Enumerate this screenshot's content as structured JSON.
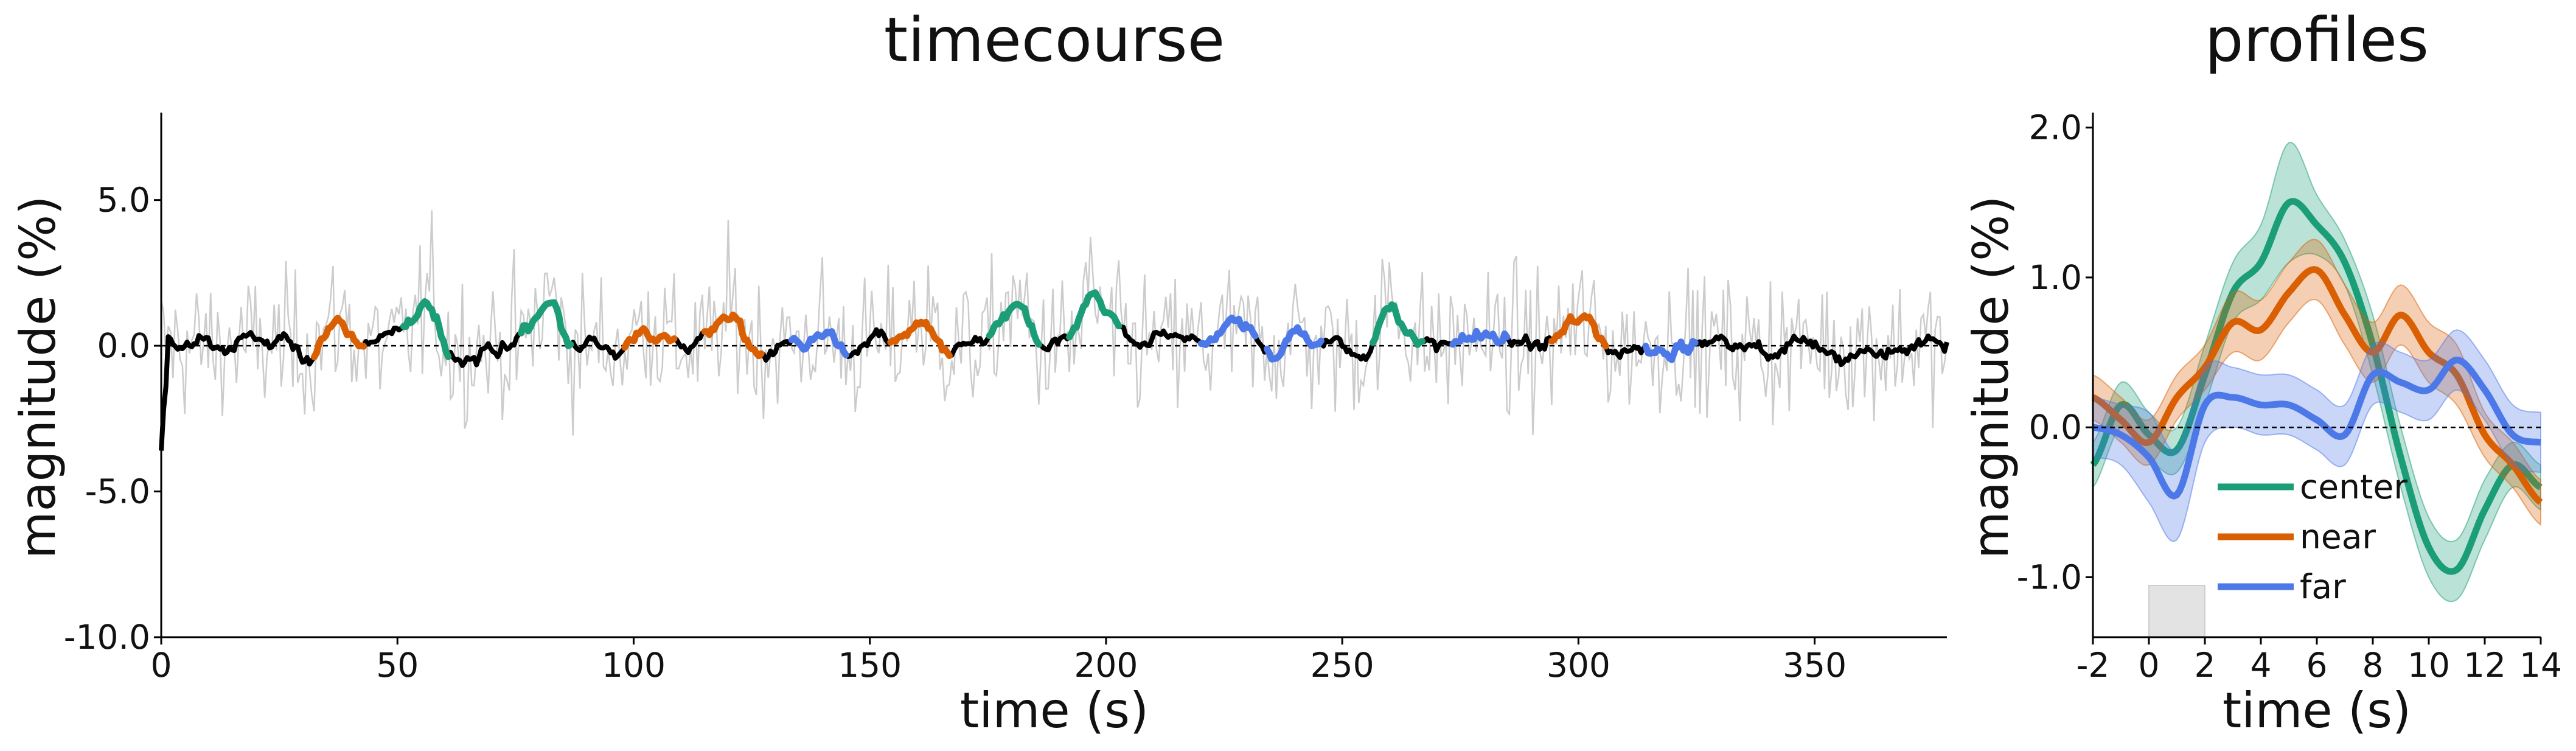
{
  "chart_data": [
    {
      "type": "line",
      "title": "timecourse",
      "xlabel": "time (s)",
      "ylabel": "magnitude (%)",
      "xlim": [
        0,
        378
      ],
      "ylim": [
        -10,
        8
      ],
      "xticks": [
        0,
        50,
        100,
        150,
        200,
        250,
        300,
        350
      ],
      "xtick_labels": [
        "0",
        "50",
        "100",
        "150",
        "200",
        "250",
        "300",
        "350"
      ],
      "yticks": [
        -10,
        -5,
        0,
        5
      ],
      "ytick_labels": [
        "-10.0",
        "-5.0",
        "0.0",
        "5.0"
      ],
      "zero_line": true,
      "grid": false,
      "legend": "none",
      "raw_series_color": "#cccccc",
      "smooth_series_color": "#000000",
      "condition_colors": {
        "center": "#1b9e77",
        "near": "#d95f02",
        "far": "#4c78e8"
      },
      "condition_blocks": [
        {
          "condition": "near",
          "start": 32,
          "end": 43
        },
        {
          "condition": "center",
          "start": 51,
          "end": 61
        },
        {
          "condition": "center",
          "start": 76,
          "end": 87
        },
        {
          "condition": "near",
          "start": 98,
          "end": 109
        },
        {
          "condition": "near",
          "start": 115,
          "end": 127
        },
        {
          "condition": "far",
          "start": 133,
          "end": 145
        },
        {
          "condition": "near",
          "start": 154,
          "end": 167
        },
        {
          "condition": "center",
          "start": 175,
          "end": 186
        },
        {
          "condition": "center",
          "start": 192,
          "end": 203
        },
        {
          "condition": "far",
          "start": 220,
          "end": 232
        },
        {
          "condition": "far",
          "start": 234,
          "end": 246
        },
        {
          "condition": "center",
          "start": 256,
          "end": 267
        },
        {
          "condition": "far",
          "start": 273,
          "end": 285
        },
        {
          "condition": "near",
          "start": 294,
          "end": 306
        },
        {
          "condition": "far",
          "start": 314,
          "end": 325
        }
      ]
    },
    {
      "type": "line",
      "title": "profiles",
      "xlabel": "time (s)",
      "ylabel": "magnitude (%)",
      "xlim": [
        -2,
        14
      ],
      "ylim": [
        -1.4,
        2.1
      ],
      "xticks": [
        -2,
        0,
        2,
        4,
        6,
        8,
        10,
        12,
        14
      ],
      "xtick_labels": [
        "-2",
        "0",
        "2",
        "4",
        "6",
        "8",
        "10",
        "12",
        "14"
      ],
      "yticks": [
        -1,
        0,
        1,
        2
      ],
      "ytick_labels": [
        "-1.0",
        "0.0",
        "1.0",
        "2.0"
      ],
      "zero_line": true,
      "stimulus_window": [
        0,
        2
      ],
      "legend": "lower-center",
      "series": [
        {
          "name": "center",
          "color": "#1b9e77",
          "x": [
            -2,
            -1,
            0,
            1,
            2,
            3,
            4,
            5,
            6,
            7,
            8,
            9,
            10,
            11,
            12,
            13,
            14
          ],
          "y": [
            -0.25,
            0.15,
            -0.05,
            -0.15,
            0.35,
            0.9,
            1.1,
            1.5,
            1.35,
            1.1,
            0.55,
            -0.2,
            -0.8,
            -0.95,
            -0.55,
            -0.25,
            -0.4
          ],
          "err": [
            0.15,
            0.15,
            0.15,
            0.15,
            0.2,
            0.2,
            0.25,
            0.4,
            0.2,
            0.15,
            0.2,
            0.2,
            0.2,
            0.2,
            0.2,
            0.15,
            0.15
          ]
        },
        {
          "name": "near",
          "color": "#d95f02",
          "x": [
            -2,
            -1,
            0,
            1,
            2,
            3,
            4,
            5,
            6,
            7,
            8,
            9,
            10,
            11,
            12,
            13,
            14
          ],
          "y": [
            0.2,
            0.05,
            -0.1,
            0.2,
            0.4,
            0.7,
            0.65,
            0.9,
            1.05,
            0.75,
            0.5,
            0.75,
            0.5,
            0.35,
            -0.05,
            -0.25,
            -0.5
          ],
          "err": [
            0.15,
            0.15,
            0.15,
            0.15,
            0.15,
            0.2,
            0.2,
            0.2,
            0.2,
            0.2,
            0.2,
            0.2,
            0.2,
            0.2,
            0.15,
            0.15,
            0.15
          ]
        },
        {
          "name": "far",
          "color": "#4c78e8",
          "x": [
            -2,
            -1,
            0,
            1,
            2,
            3,
            4,
            5,
            6,
            7,
            8,
            9,
            10,
            11,
            12,
            13,
            14
          ],
          "y": [
            0.0,
            -0.05,
            -0.2,
            -0.45,
            0.15,
            0.2,
            0.15,
            0.15,
            0.05,
            -0.05,
            0.35,
            0.3,
            0.25,
            0.45,
            0.25,
            -0.05,
            -0.1
          ],
          "err": [
            0.2,
            0.2,
            0.3,
            0.3,
            0.25,
            0.2,
            0.2,
            0.2,
            0.2,
            0.2,
            0.2,
            0.2,
            0.2,
            0.2,
            0.2,
            0.2,
            0.2
          ]
        }
      ]
    }
  ]
}
